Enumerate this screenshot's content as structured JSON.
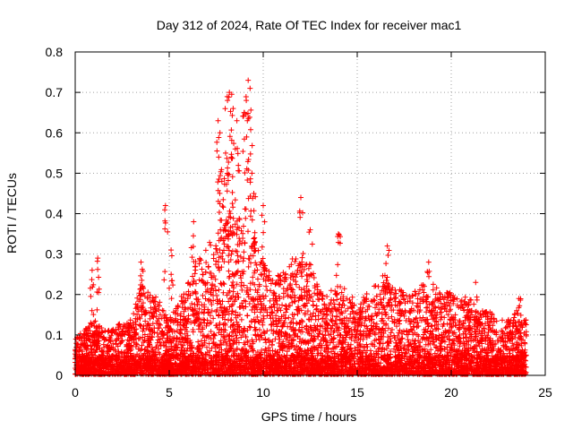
{
  "chart_data": {
    "type": "scatter",
    "title": "Day 312 of 2024, Rate Of TEC Index for receiver mac1",
    "xlabel": "GPS time / hours",
    "ylabel": "ROTI / TECUs",
    "xlim": [
      0,
      25
    ],
    "ylim": [
      0,
      0.8
    ],
    "xticks": [
      "0",
      "5",
      "10",
      "15",
      "20",
      "25"
    ],
    "yticks": [
      "0",
      "0.1",
      "0.2",
      "0.3",
      "0.4",
      "0.5",
      "0.6",
      "0.7",
      "0.8"
    ],
    "grid": true,
    "marker": "+",
    "series_color": "#ff0000",
    "envelope": {
      "hours": [
        0,
        0.5,
        1,
        1.5,
        2,
        2.5,
        3,
        3.5,
        4,
        4.5,
        5,
        5.5,
        6,
        6.5,
        7,
        7.5,
        8,
        8.5,
        9,
        9.5,
        10,
        10.5,
        11,
        11.5,
        12,
        12.5,
        13,
        13.5,
        14,
        14.5,
        15,
        15.5,
        16,
        16.5,
        17,
        17.5,
        18,
        18.5,
        19,
        19.5,
        20,
        20.5,
        21,
        21.5,
        22,
        22.5,
        23,
        23.5,
        24
      ],
      "typical_max": [
        0.08,
        0.1,
        0.12,
        0.1,
        0.1,
        0.12,
        0.12,
        0.2,
        0.18,
        0.16,
        0.12,
        0.16,
        0.2,
        0.25,
        0.28,
        0.3,
        0.33,
        0.35,
        0.32,
        0.3,
        0.25,
        0.22,
        0.22,
        0.25,
        0.26,
        0.24,
        0.18,
        0.18,
        0.2,
        0.18,
        0.16,
        0.18,
        0.2,
        0.22,
        0.2,
        0.18,
        0.18,
        0.2,
        0.2,
        0.18,
        0.18,
        0.16,
        0.18,
        0.14,
        0.14,
        0.12,
        0.12,
        0.14,
        0.12
      ]
    },
    "peaks": [
      {
        "x": 1.2,
        "y": 0.29
      },
      {
        "x": 0.9,
        "y": 0.26
      },
      {
        "x": 3.5,
        "y": 0.28
      },
      {
        "x": 4.8,
        "y": 0.42
      },
      {
        "x": 5.1,
        "y": 0.31
      },
      {
        "x": 6.3,
        "y": 0.38
      },
      {
        "x": 7.6,
        "y": 0.63
      },
      {
        "x": 7.7,
        "y": 0.6
      },
      {
        "x": 8.1,
        "y": 0.68
      },
      {
        "x": 8.2,
        "y": 0.7
      },
      {
        "x": 8.4,
        "y": 0.66
      },
      {
        "x": 8.6,
        "y": 0.63
      },
      {
        "x": 9.1,
        "y": 0.68
      },
      {
        "x": 9.2,
        "y": 0.73
      },
      {
        "x": 9.3,
        "y": 0.71
      },
      {
        "x": 9.4,
        "y": 0.5
      },
      {
        "x": 8.0,
        "y": 0.55
      },
      {
        "x": 8.3,
        "y": 0.54
      },
      {
        "x": 7.8,
        "y": 0.48
      },
      {
        "x": 9.0,
        "y": 0.65
      },
      {
        "x": 9.5,
        "y": 0.45
      },
      {
        "x": 10.0,
        "y": 0.42
      },
      {
        "x": 12.0,
        "y": 0.44
      },
      {
        "x": 12.5,
        "y": 0.36
      },
      {
        "x": 14.0,
        "y": 0.35
      },
      {
        "x": 16.6,
        "y": 0.32
      },
      {
        "x": 18.8,
        "y": 0.28
      },
      {
        "x": 21.3,
        "y": 0.23
      },
      {
        "x": 23.6,
        "y": 0.19
      }
    ]
  }
}
